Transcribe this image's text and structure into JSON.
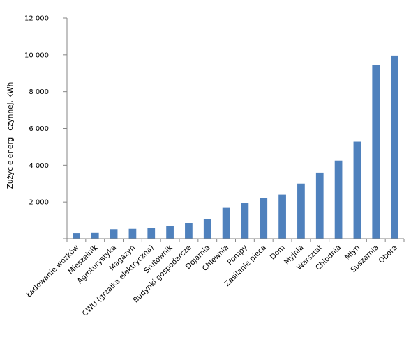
{
  "chart_data": {
    "type": "bar",
    "title": "",
    "xlabel": "",
    "ylabel": "Zużycie energii czynnej, kWh",
    "ylim": [
      0,
      12000
    ],
    "grid": false,
    "legend": "none",
    "bar_color": "#4F81BD",
    "y_ticks": [
      {
        "value": 0,
        "label": "-"
      },
      {
        "value": 2000,
        "label": "2 000"
      },
      {
        "value": 4000,
        "label": "4 000"
      },
      {
        "value": 6000,
        "label": "6 000"
      },
      {
        "value": 8000,
        "label": "8 000"
      },
      {
        "value": 10000,
        "label": "10 000"
      },
      {
        "value": 12000,
        "label": "12 000"
      }
    ],
    "categories": [
      "Ładowanie wózków",
      "Mieszalnik",
      "Agroturystyka",
      "Magazyn",
      "CWU (grzałka elektryczna)",
      "Śrutownik",
      "Budynki gospodarcze",
      "Dojarnia",
      "Chlewnia",
      "Pompy",
      "Zasilanie pieca",
      "Dom",
      "Myjnia",
      "Warsztat",
      "Chłodnia",
      "Młyn",
      "Suszarnia",
      "Obora"
    ],
    "values": [
      300,
      310,
      520,
      540,
      580,
      690,
      850,
      1080,
      1680,
      1930,
      2230,
      2400,
      3000,
      3600,
      4250,
      5280,
      9430,
      9960
    ]
  }
}
